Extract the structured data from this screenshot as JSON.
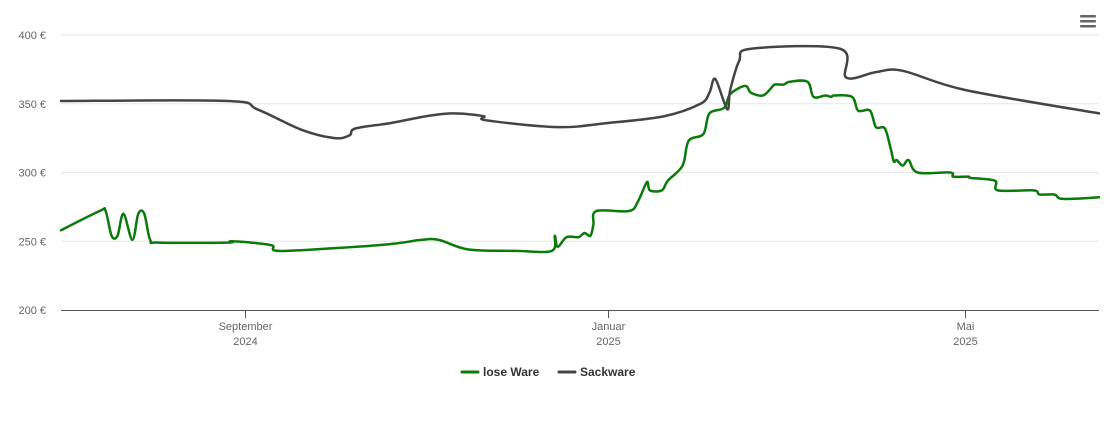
{
  "chart_data": {
    "type": "line",
    "title": "",
    "xlabel": "",
    "ylabel": "",
    "ylim": [
      200,
      400
    ],
    "xlim": [
      "2024-07-01",
      "2025-06-15"
    ],
    "grid": true,
    "legend_position": "bottom-center",
    "y_ticks": [
      {
        "value": 200,
        "label": "200 €"
      },
      {
        "value": 250,
        "label": "250 €"
      },
      {
        "value": 300,
        "label": "300 €"
      },
      {
        "value": 350,
        "label": "350 €"
      },
      {
        "value": 400,
        "label": "400 €"
      }
    ],
    "x_ticks": [
      {
        "date": "2024-09-01",
        "month": "September",
        "year": "2024"
      },
      {
        "date": "2025-01-01",
        "month": "Januar",
        "year": "2025"
      },
      {
        "date": "2025-05-01",
        "month": "Mai",
        "year": "2025"
      }
    ],
    "series": [
      {
        "name": "lose Ware",
        "color": "#0a7a0a",
        "points": [
          [
            "2024-07-01",
            258
          ],
          [
            "2024-07-14",
            272
          ],
          [
            "2024-07-16",
            272
          ],
          [
            "2024-07-18",
            254
          ],
          [
            "2024-07-20",
            254
          ],
          [
            "2024-07-22",
            270
          ],
          [
            "2024-07-25",
            251
          ],
          [
            "2024-07-27",
            270
          ],
          [
            "2024-07-29",
            270
          ],
          [
            "2024-07-31",
            251
          ],
          [
            "2024-08-03",
            249
          ],
          [
            "2024-08-26",
            249
          ],
          [
            "2024-08-27",
            250
          ],
          [
            "2024-09-03",
            249
          ],
          [
            "2024-09-10",
            247
          ],
          [
            "2024-09-12",
            243
          ],
          [
            "2024-10-01",
            245
          ],
          [
            "2024-10-20",
            248
          ],
          [
            "2024-10-30",
            251
          ],
          [
            "2024-11-05",
            251
          ],
          [
            "2024-11-15",
            244
          ],
          [
            "2024-12-01",
            243
          ],
          [
            "2024-12-13",
            243
          ],
          [
            "2024-12-14",
            254
          ],
          [
            "2024-12-15",
            246
          ],
          [
            "2024-12-18",
            253
          ],
          [
            "2024-12-22",
            253
          ],
          [
            "2024-12-24",
            256
          ],
          [
            "2024-12-26",
            254
          ],
          [
            "2024-12-27",
            262
          ],
          [
            "2024-12-28",
            272
          ],
          [
            "2025-01-08",
            272
          ],
          [
            "2025-01-11",
            279
          ],
          [
            "2025-01-14",
            293
          ],
          [
            "2025-01-15",
            287
          ],
          [
            "2025-01-19",
            287
          ],
          [
            "2025-01-21",
            294
          ],
          [
            "2025-01-26",
            305
          ],
          [
            "2025-01-28",
            323
          ],
          [
            "2025-02-02",
            328
          ],
          [
            "2025-02-04",
            343
          ],
          [
            "2025-02-09",
            347
          ],
          [
            "2025-02-11",
            357
          ],
          [
            "2025-02-16",
            363
          ],
          [
            "2025-02-18",
            358
          ],
          [
            "2025-02-22",
            356
          ],
          [
            "2025-02-25",
            362
          ],
          [
            "2025-02-26",
            364
          ],
          [
            "2025-03-01",
            364
          ],
          [
            "2025-03-03",
            366
          ],
          [
            "2025-03-09",
            366
          ],
          [
            "2025-03-11",
            355
          ],
          [
            "2025-03-15",
            356
          ],
          [
            "2025-03-17",
            355
          ],
          [
            "2025-03-18",
            356
          ],
          [
            "2025-03-24",
            355
          ],
          [
            "2025-03-26",
            345
          ],
          [
            "2025-03-30",
            345
          ],
          [
            "2025-04-01",
            333
          ],
          [
            "2025-04-04",
            332
          ],
          [
            "2025-04-06",
            317
          ],
          [
            "2025-04-07",
            308
          ],
          [
            "2025-04-08",
            309
          ],
          [
            "2025-04-10",
            305
          ],
          [
            "2025-04-12",
            309
          ],
          [
            "2025-04-15",
            300
          ],
          [
            "2025-04-26",
            300
          ],
          [
            "2025-04-27",
            297
          ],
          [
            "2025-05-02",
            297
          ],
          [
            "2025-05-03",
            296
          ],
          [
            "2025-05-11",
            294
          ],
          [
            "2025-05-12",
            287
          ],
          [
            "2025-05-24",
            287
          ],
          [
            "2025-05-26",
            284
          ],
          [
            "2025-05-31",
            284
          ],
          [
            "2025-06-02",
            281
          ],
          [
            "2025-06-08",
            281
          ],
          [
            "2025-06-15",
            282
          ]
        ]
      },
      {
        "name": "Sackware",
        "color": "#444444",
        "points": [
          [
            "2024-07-01",
            352
          ],
          [
            "2024-08-26",
            352
          ],
          [
            "2024-09-05",
            346
          ],
          [
            "2024-09-20",
            331
          ],
          [
            "2024-10-01",
            325
          ],
          [
            "2024-10-06",
            327
          ],
          [
            "2024-10-08",
            332
          ],
          [
            "2024-10-20",
            336
          ],
          [
            "2024-11-01",
            341
          ],
          [
            "2024-11-10",
            343
          ],
          [
            "2024-11-20",
            341
          ],
          [
            "2024-11-21",
            338
          ],
          [
            "2024-12-15",
            333
          ],
          [
            "2025-01-01",
            336
          ],
          [
            "2025-01-20",
            341
          ],
          [
            "2025-02-01",
            350
          ],
          [
            "2025-02-04",
            358
          ],
          [
            "2025-02-06",
            368
          ],
          [
            "2025-02-10",
            346
          ],
          [
            "2025-02-11",
            360
          ],
          [
            "2025-02-14",
            381
          ],
          [
            "2025-02-18",
            390
          ],
          [
            "2025-03-20",
            390
          ],
          [
            "2025-03-22",
            369
          ],
          [
            "2025-04-01",
            373
          ],
          [
            "2025-04-10",
            374
          ],
          [
            "2025-05-01",
            360
          ],
          [
            "2025-06-15",
            343
          ]
        ]
      }
    ]
  },
  "menu": {
    "icon": "hamburger-menu-icon"
  }
}
